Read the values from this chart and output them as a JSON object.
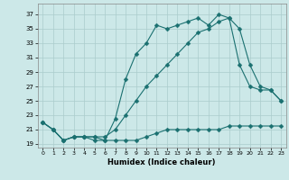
{
  "xlabel": "Humidex (Indice chaleur)",
  "bg_color": "#cce8e8",
  "grid_color": "#aacccc",
  "line_color": "#1a7070",
  "xlim": [
    -0.5,
    23.5
  ],
  "ylim": [
    18.5,
    38.5
  ],
  "xticks": [
    0,
    1,
    2,
    3,
    4,
    5,
    6,
    7,
    8,
    9,
    10,
    11,
    12,
    13,
    14,
    15,
    16,
    17,
    18,
    19,
    20,
    21,
    22,
    23
  ],
  "yticks": [
    19,
    21,
    23,
    25,
    27,
    29,
    31,
    33,
    35,
    37
  ],
  "line1_x": [
    0,
    1,
    2,
    3,
    4,
    5,
    6,
    7,
    8,
    9,
    10,
    11,
    12,
    13,
    14,
    15,
    16,
    17,
    18,
    19,
    20,
    21,
    22,
    23
  ],
  "line1_y": [
    22.0,
    21.0,
    19.5,
    20.0,
    20.0,
    19.5,
    19.5,
    19.5,
    19.5,
    19.5,
    20.0,
    20.5,
    21.0,
    21.0,
    21.0,
    21.0,
    21.0,
    21.0,
    21.5,
    21.5,
    21.5,
    21.5,
    21.5,
    21.5
  ],
  "line2_x": [
    0,
    1,
    2,
    3,
    4,
    5,
    6,
    7,
    8,
    9,
    10,
    11,
    12,
    13,
    14,
    15,
    16,
    17,
    18,
    19,
    20,
    21,
    22,
    23
  ],
  "line2_y": [
    22.0,
    21.0,
    19.5,
    20.0,
    20.0,
    20.0,
    20.0,
    21.0,
    23.0,
    25.0,
    27.0,
    28.5,
    30.0,
    31.5,
    33.0,
    34.5,
    35.0,
    36.0,
    36.5,
    30.0,
    27.0,
    26.5,
    26.5,
    25.0
  ],
  "line3_x": [
    0,
    1,
    2,
    3,
    4,
    5,
    6,
    7,
    8,
    9,
    10,
    11,
    12,
    13,
    14,
    15,
    16,
    17,
    18,
    19,
    20,
    21,
    22,
    23
  ],
  "line3_y": [
    22.0,
    21.0,
    19.5,
    20.0,
    20.0,
    20.0,
    19.5,
    22.5,
    28.0,
    31.5,
    33.0,
    35.5,
    35.0,
    35.5,
    36.0,
    36.5,
    35.5,
    37.0,
    36.5,
    35.0,
    30.0,
    27.0,
    26.5,
    25.0
  ],
  "marker": "D",
  "marker_size": 2.5,
  "linewidth": 0.8
}
